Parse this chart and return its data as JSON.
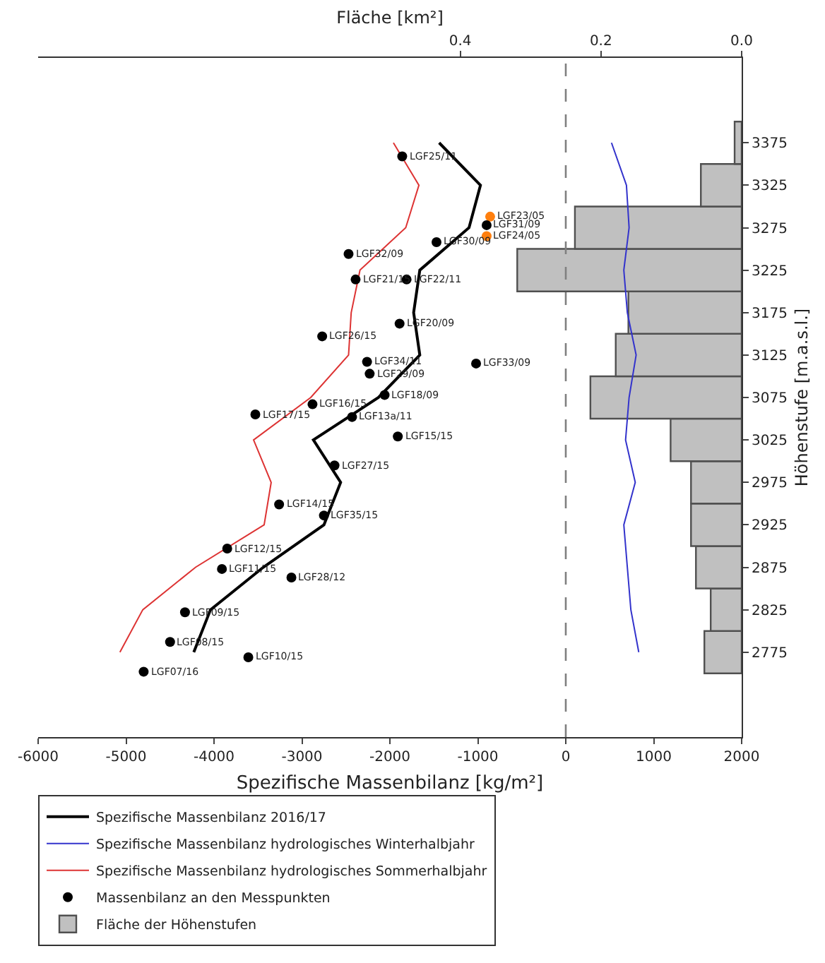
{
  "chart_data": {
    "type": "line",
    "orientation": "horizontal",
    "xlabel": "Spezifische Massenbilanz [kg/m²]",
    "x2label": "Fläche [km²]",
    "ylabel": "Höhenstufe [m.a.s.l.]",
    "xlim": [
      -6000,
      2000
    ],
    "xticks": [
      -6000,
      -5000,
      -4000,
      -3000,
      -2000,
      -1000,
      0,
      1000,
      2000
    ],
    "x2lim": [
      1.0,
      0
    ],
    "x2ticks": [
      0.4,
      0.2,
      {
        "value": 0,
        "label": "0.0"
      }
    ],
    "ylim": [
      2675,
      3475
    ],
    "yticks": [
      2775,
      2825,
      2875,
      2925,
      2975,
      3025,
      3075,
      3125,
      3175,
      3225,
      3275,
      3325,
      3375
    ],
    "legend": "bottom left",
    "ref_lines": [
      {
        "axis": "x",
        "value": 0,
        "color": "#808080",
        "line_style": "dashed"
      }
    ],
    "series": [
      {
        "name": "Spezifische Massenbilanz 2016/17",
        "color": "#000000",
        "x": [
          2775,
          2825,
          2875,
          2925,
          2975,
          3025,
          3075,
          3125,
          3175,
          3225,
          3275,
          3325,
          3375
        ],
        "values": [
          -4230,
          -4040,
          -3440,
          -2750,
          -2560,
          -2870,
          -2130,
          -1660,
          -1730,
          -1660,
          -1100,
          -970,
          -1440
        ]
      },
      {
        "name": "Spezifische Massenbilanz hydrologisches Winterhalbjahr",
        "color": "#3333cc",
        "x": [
          2775,
          2825,
          2875,
          2925,
          2975,
          3025,
          3075,
          3125,
          3175,
          3225,
          3275,
          3325,
          3375
        ],
        "values": [
          830,
          740,
          700,
          660,
          790,
          680,
          720,
          800,
          700,
          660,
          720,
          690,
          520
        ]
      },
      {
        "name": "Spezifische Massenbilanz hydrologisches Sommerhalbjahr",
        "color": "#dd3333",
        "x": [
          2775,
          2825,
          2875,
          2925,
          2975,
          3025,
          3075,
          3125,
          3175,
          3225,
          3275,
          3325,
          3375
        ],
        "values": [
          -5070,
          -4810,
          -4210,
          -3430,
          -3350,
          -3550,
          -2900,
          -2470,
          -2440,
          -2340,
          -1820,
          -1670,
          -1960
        ]
      },
      {
        "type": "scatter",
        "marker": "circle",
        "name": "Massenbilanz an den Messpunkten",
        "color": "#000000",
        "x": [
          3359,
          3288,
          3278,
          3265,
          3258,
          3244,
          3214,
          3214,
          3162,
          3147,
          3117,
          3103,
          3115,
          3078,
          3067,
          3055,
          3052,
          3029,
          2995,
          2949,
          2936,
          2897,
          2873,
          2863,
          2822,
          2787,
          2769,
          2752
        ],
        "values": [
          -1860,
          -860,
          -900,
          -900,
          -1470,
          -2470,
          -2390,
          -1810,
          -1890,
          -2770,
          -2260,
          -2230,
          -1020,
          -2060,
          -2880,
          -3530,
          -2430,
          -1910,
          -2630,
          -3260,
          -2750,
          -3850,
          -3910,
          -3120,
          -4330,
          -4500,
          -3610,
          -4800
        ],
        "colors": [
          "#000000",
          "#ff7f0e",
          "#000000",
          "#ff7f0e",
          "#000000",
          "#000000",
          "#000000",
          "#000000",
          "#000000",
          "#000000",
          "#000000",
          "#000000",
          "#000000",
          "#000000",
          "#000000",
          "#000000",
          "#000000",
          "#000000",
          "#000000",
          "#000000",
          "#000000",
          "#000000",
          "#000000",
          "#000000",
          "#000000",
          "#000000",
          "#000000",
          "#000000"
        ]
      },
      {
        "type": "bar",
        "axis": "x2",
        "name": "Fläche der Höhenstufen",
        "color": "#c0c0c0",
        "x": [
          2775,
          2825,
          2875,
          2925,
          2975,
          3025,
          3075,
          3125,
          3175,
          3225,
          3275,
          3325,
          3375
        ],
        "values": [
          0.053,
          0.044,
          0.065,
          0.072,
          0.072,
          0.101,
          0.215,
          0.179,
          0.161,
          0.319,
          0.237,
          0.058,
          0.01
        ]
      }
    ],
    "annotations": [
      {
        "text": "LGF25/11",
        "x": -1860,
        "y": 3359
      },
      {
        "text": "LGF23/05",
        "x": -860,
        "y": 3288
      },
      {
        "text": "LGF31/09",
        "x": -900,
        "y": 3278
      },
      {
        "text": "LGF24/05",
        "x": -900,
        "y": 3265
      },
      {
        "text": "LGF30/09",
        "x": -1470,
        "y": 3258
      },
      {
        "text": "LGF32/09",
        "x": -2470,
        "y": 3244
      },
      {
        "text": "LGF21/15",
        "x": -2390,
        "y": 3214
      },
      {
        "text": "LGF22/11",
        "x": -1810,
        "y": 3214
      },
      {
        "text": "LGF20/09",
        "x": -1890,
        "y": 3162
      },
      {
        "text": "LGF26/15",
        "x": -2770,
        "y": 3147
      },
      {
        "text": "LGF34/11",
        "x": -2260,
        "y": 3117
      },
      {
        "text": "LGF29/09",
        "x": -2230,
        "y": 3103
      },
      {
        "text": "LGF33/09",
        "x": -1020,
        "y": 3115
      },
      {
        "text": "LGF18/09",
        "x": -2060,
        "y": 3078
      },
      {
        "text": "LGF16/15",
        "x": -2880,
        "y": 3067
      },
      {
        "text": "LGF17/15",
        "x": -3530,
        "y": 3055
      },
      {
        "text": "LGF13a/11",
        "x": -2430,
        "y": 3052
      },
      {
        "text": "LGF15/15",
        "x": -1910,
        "y": 3029
      },
      {
        "text": "LGF27/15",
        "x": -2630,
        "y": 2995
      },
      {
        "text": "LGF14/15",
        "x": -3260,
        "y": 2949
      },
      {
        "text": "LGF35/15",
        "x": -2750,
        "y": 2936
      },
      {
        "text": "LGF12/15",
        "x": -3850,
        "y": 2897
      },
      {
        "text": "LGF11/15",
        "x": -3910,
        "y": 2873
      },
      {
        "text": "LGF28/12",
        "x": -3120,
        "y": 2863
      },
      {
        "text": "LGF09/15",
        "x": -4330,
        "y": 2822
      },
      {
        "text": "LGF08/15",
        "x": -4500,
        "y": 2787
      },
      {
        "text": "LGF10/15",
        "x": -3610,
        "y": 2769
      },
      {
        "text": "LGF07/16",
        "x": -4800,
        "y": 2752
      }
    ]
  }
}
